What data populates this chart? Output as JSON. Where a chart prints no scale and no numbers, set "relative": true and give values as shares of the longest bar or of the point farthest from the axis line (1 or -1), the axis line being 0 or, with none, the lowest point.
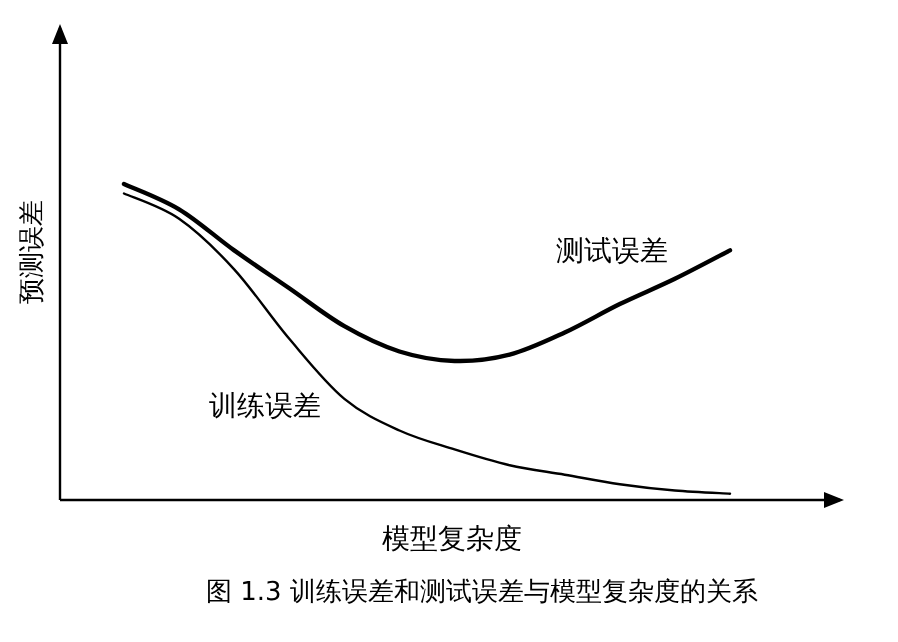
{
  "chart_data": {
    "type": "line",
    "relative": true,
    "xlabel": "模型复杂度",
    "ylabel": "预测误差",
    "categories": [
      null,
      null,
      null,
      null,
      null,
      null,
      null,
      null,
      null,
      null,
      null,
      null
    ],
    "series": [
      {
        "name": "测试误差",
        "color": "#000000",
        "values": [
          1.0,
          0.92,
          0.79,
          0.67,
          0.55,
          0.47,
          0.44,
          0.46,
          0.53,
          0.62,
          0.7,
          0.79
        ]
      },
      {
        "name": "训练误差",
        "color": "#000000",
        "values": [
          0.97,
          0.89,
          0.73,
          0.51,
          0.32,
          0.22,
          0.16,
          0.11,
          0.08,
          0.05,
          0.03,
          0.02
        ]
      }
    ],
    "legend": false,
    "annotations": [
      "图 1.3  训练误差和测试误差与模型复杂度的关系"
    ]
  }
}
